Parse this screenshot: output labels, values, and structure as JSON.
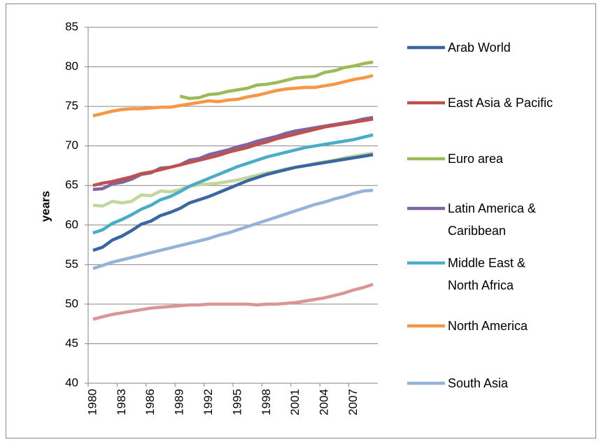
{
  "chart_data": {
    "type": "line",
    "y_label": "years",
    "categories": [
      "1980",
      null,
      null,
      "1983",
      null,
      null,
      "1986",
      null,
      null,
      "1989",
      null,
      null,
      "1992",
      null,
      null,
      "1995",
      null,
      null,
      "1998",
      null,
      null,
      "2001",
      null,
      null,
      "2004",
      null,
      null,
      "2007",
      null,
      null
    ],
    "ylim": [
      40,
      85
    ],
    "yticks": [
      40,
      45,
      50,
      55,
      60,
      65,
      70,
      75,
      80,
      85
    ],
    "grid": true,
    "series": [
      {
        "name": "Arab World",
        "color": "#3a67a2",
        "values": [
          56.8,
          57.2,
          58.1,
          58.6,
          59.3,
          60.1,
          60.5,
          61.2,
          61.6,
          62.1,
          62.8,
          63.2,
          63.6,
          64.1,
          64.6,
          65.1,
          65.6,
          66.0,
          66.4,
          66.7,
          67.0,
          67.3,
          67.5,
          67.7,
          67.9,
          68.1,
          68.3,
          68.5,
          68.7,
          68.9
        ]
      },
      {
        "name": "East Asia & Pacific",
        "color": "#c0504d",
        "values": [
          65.0,
          65.3,
          65.5,
          65.8,
          66.1,
          66.5,
          66.7,
          67.0,
          67.3,
          67.6,
          67.9,
          68.2,
          68.5,
          68.8,
          69.2,
          69.5,
          69.8,
          70.2,
          70.5,
          70.9,
          71.2,
          71.5,
          71.8,
          72.1,
          72.4,
          72.6,
          72.8,
          73.0,
          73.2,
          73.4
        ]
      },
      {
        "name": "Euro area",
        "color": "#9bbb59",
        "values": [
          null,
          null,
          null,
          null,
          null,
          null,
          null,
          null,
          null,
          76.3,
          76.0,
          76.1,
          76.5,
          76.6,
          76.9,
          77.1,
          77.3,
          77.7,
          77.8,
          78.0,
          78.3,
          78.6,
          78.7,
          78.8,
          79.3,
          79.5,
          79.9,
          80.1,
          80.4,
          80.6
        ]
      },
      {
        "name": "Latin America &\nCaribbean",
        "color": "#8064a2",
        "values": [
          64.5,
          64.6,
          65.2,
          65.4,
          65.8,
          66.4,
          66.6,
          67.2,
          67.3,
          67.6,
          68.2,
          68.4,
          68.9,
          69.2,
          69.5,
          69.9,
          70.2,
          70.6,
          70.9,
          71.2,
          71.6,
          71.9,
          72.1,
          72.3,
          72.5,
          72.7,
          72.9,
          73.1,
          73.4,
          73.6
        ]
      },
      {
        "name": "Middle East &\nNorth Africa",
        "color": "#4bacc6",
        "values": [
          59.0,
          59.4,
          60.2,
          60.7,
          61.3,
          62.0,
          62.5,
          63.2,
          63.6,
          64.2,
          64.9,
          65.4,
          65.9,
          66.4,
          66.9,
          67.4,
          67.8,
          68.2,
          68.6,
          68.9,
          69.2,
          69.5,
          69.8,
          70.0,
          70.2,
          70.4,
          70.6,
          70.8,
          71.1,
          71.4
        ]
      },
      {
        "name": "North America",
        "color": "#f79646",
        "values": [
          73.8,
          74.1,
          74.4,
          74.6,
          74.7,
          74.7,
          74.8,
          74.9,
          74.9,
          75.1,
          75.3,
          75.5,
          75.7,
          75.6,
          75.8,
          75.9,
          76.2,
          76.4,
          76.7,
          77.0,
          77.2,
          77.3,
          77.4,
          77.4,
          77.6,
          77.8,
          78.1,
          78.4,
          78.6,
          78.9
        ]
      },
      {
        "name": "South Asia",
        "color": "#95b3d7",
        "values": [
          54.5,
          54.9,
          55.3,
          55.6,
          55.9,
          56.2,
          56.5,
          56.8,
          57.1,
          57.4,
          57.7,
          58.0,
          58.3,
          58.7,
          59.0,
          59.4,
          59.8,
          60.2,
          60.6,
          61.0,
          61.4,
          61.8,
          62.2,
          62.6,
          62.9,
          63.3,
          63.6,
          64.0,
          64.3,
          64.4
        ]
      },
      {
        "color": "#c3d69b",
        "values": [
          62.5,
          62.4,
          63.0,
          62.8,
          63.0,
          63.8,
          63.7,
          64.3,
          64.2,
          64.5,
          64.9,
          65.1,
          65.2,
          65.3,
          65.5,
          65.7,
          66.0,
          66.3,
          66.6,
          66.8,
          67.1,
          67.3,
          67.5,
          67.8,
          68.0,
          68.2,
          68.5,
          68.7,
          68.9,
          69.1
        ]
      },
      {
        "color": "#d99694",
        "values": [
          48.1,
          48.4,
          48.7,
          48.9,
          49.1,
          49.3,
          49.5,
          49.6,
          49.7,
          49.8,
          49.9,
          49.9,
          50.0,
          50.0,
          50.0,
          50.0,
          50.0,
          49.9,
          50.0,
          50.0,
          50.1,
          50.2,
          50.4,
          50.6,
          50.8,
          51.1,
          51.4,
          51.8,
          52.1,
          52.5
        ]
      }
    ]
  }
}
